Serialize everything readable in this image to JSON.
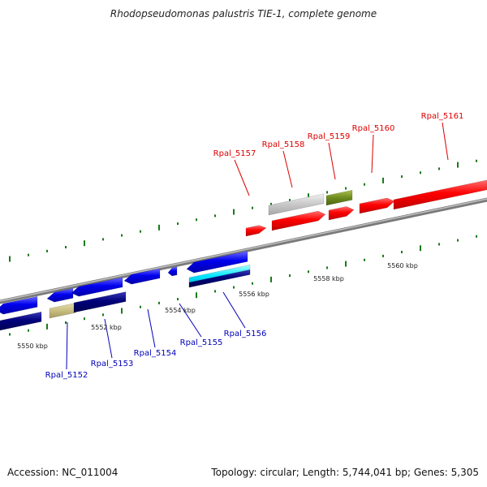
{
  "title": "Rhodopseudomonas palustris TIE-1, complete genome",
  "accession": "Accession: NC_011004",
  "summary": "Topology: circular; Length: 5,744,041 bp; Genes: 5,305",
  "colors": {
    "forward": "#ff0000",
    "reverse_blue": "#0000ee",
    "reverse_navy": "#00007a",
    "cyan": "#00e5ff",
    "khaki": "#c8be82",
    "olive": "#6e8c1e",
    "grey_gene": "#c8c8c8",
    "tick": "#1a7a1a",
    "backbone": "#909090",
    "forward_label": "#dd0000",
    "reverse_label": "#0000bb"
  },
  "kbp_labels": [
    "5550 kbp",
    "5552 kbp",
    "5554 kbp",
    "5556 kbp",
    "5558 kbp",
    "5560 kbp"
  ],
  "forward_genes": [
    {
      "label": "Rpal_5157"
    },
    {
      "label": "Rpal_5158"
    },
    {
      "label": "Rpal_5159"
    },
    {
      "label": "Rpal_5160"
    },
    {
      "label": "Rpal_5161"
    }
  ],
  "reverse_genes": [
    {
      "label": "Rpal_5152"
    },
    {
      "label": "Rpal_5153"
    },
    {
      "label": "Rpal_5154"
    },
    {
      "label": "Rpal_5155"
    },
    {
      "label": "Rpal_5156"
    }
  ]
}
